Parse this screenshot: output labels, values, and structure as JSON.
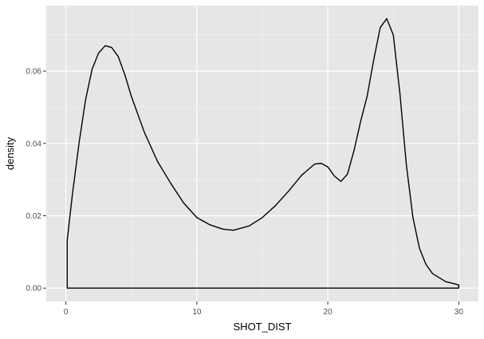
{
  "chart_data": {
    "type": "area",
    "xlabel": "SHOT_DIST",
    "ylabel": "density",
    "xlim": [
      -1.5,
      31.5
    ],
    "ylim": [
      -0.0037,
      0.0781
    ],
    "x_ticks": [
      0,
      10,
      20,
      30
    ],
    "x_tick_labels": [
      "0",
      "10",
      "20",
      "30"
    ],
    "y_ticks": [
      0.0,
      0.02,
      0.04,
      0.06
    ],
    "y_tick_labels": [
      "0.00",
      "0.02",
      "0.04",
      "0.06"
    ],
    "grid": true,
    "legend": "none",
    "series": [
      {
        "x": [
          0.1,
          0.5,
          1.0,
          1.5,
          2.0,
          2.5,
          3.0,
          3.5,
          4.0,
          4.5,
          5.0,
          6.0,
          7.0,
          8.0,
          9.0,
          10.0,
          11.0,
          12.0,
          12.8,
          14.0,
          15.0,
          16.0,
          17.0,
          18.0,
          19.0,
          19.5,
          20.0,
          20.5,
          21.0,
          21.5,
          22.0,
          22.5,
          23.0,
          23.5,
          24.0,
          24.5,
          25.0,
          25.5,
          26.0,
          26.5,
          27.0,
          27.5,
          28.0,
          29.0,
          30.0
        ],
        "y": [
          0.0132,
          0.026,
          0.04,
          0.052,
          0.0605,
          0.065,
          0.067,
          0.0665,
          0.064,
          0.059,
          0.053,
          0.043,
          0.035,
          0.029,
          0.0235,
          0.0195,
          0.0175,
          0.0163,
          0.016,
          0.0172,
          0.0195,
          0.0228,
          0.0268,
          0.0312,
          0.0343,
          0.0345,
          0.0335,
          0.031,
          0.0295,
          0.0315,
          0.038,
          0.046,
          0.053,
          0.063,
          0.072,
          0.0745,
          0.07,
          0.054,
          0.034,
          0.0195,
          0.011,
          0.0065,
          0.004,
          0.0018,
          0.0009
        ]
      }
    ]
  }
}
